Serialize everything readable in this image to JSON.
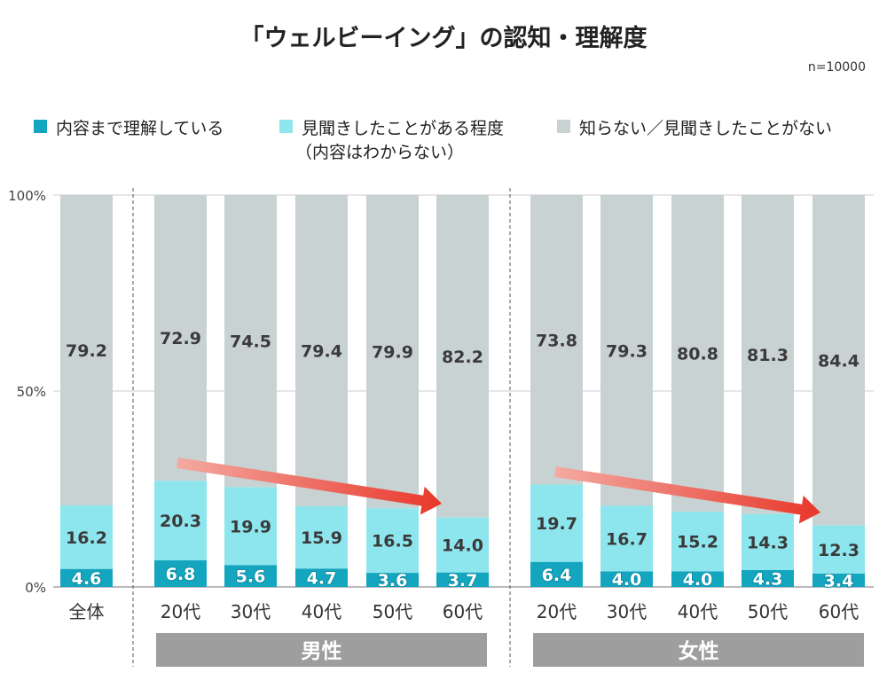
{
  "chart_data": {
    "type": "bar",
    "stacked": true,
    "title": "「ウェルビーイング」の認知・理解度",
    "note": "n=10000",
    "categories": [
      "全体",
      "20代",
      "30代",
      "40代",
      "50代",
      "60代",
      "20代",
      "30代",
      "40代",
      "50代",
      "60代"
    ],
    "groups": [
      {
        "label": "男性",
        "categories": [
          1,
          2,
          3,
          4,
          5
        ]
      },
      {
        "label": "女性",
        "categories": [
          6,
          7,
          8,
          9,
          10
        ]
      }
    ],
    "series": [
      {
        "name": "内容まで理解している",
        "color": "#14a5bf",
        "values": [
          4.6,
          6.8,
          5.6,
          4.7,
          3.6,
          3.7,
          6.4,
          4.0,
          4.0,
          4.3,
          3.4
        ]
      },
      {
        "name": "見聞きしたことがある程度",
        "name_line2": "（内容はわからない）",
        "color": "#8de6ee",
        "values": [
          16.2,
          20.3,
          19.9,
          15.9,
          16.5,
          14.0,
          19.7,
          16.7,
          15.2,
          14.3,
          12.3
        ]
      },
      {
        "name": "知らない／見聞きしたことがない",
        "color": "#c8d2d3",
        "values": [
          79.2,
          72.9,
          74.5,
          79.4,
          79.9,
          82.2,
          73.8,
          79.3,
          80.8,
          81.3,
          84.4
        ]
      }
    ],
    "yticks": [
      "0%",
      "50%",
      "100%"
    ],
    "ylim": [
      0,
      100
    ],
    "grid": true,
    "legend": "top",
    "annotations": [
      "downward trend arrow across 男性 20代→60代",
      "downward trend arrow across 女性 20代→60代"
    ],
    "arrow_color": "#e8372a"
  }
}
